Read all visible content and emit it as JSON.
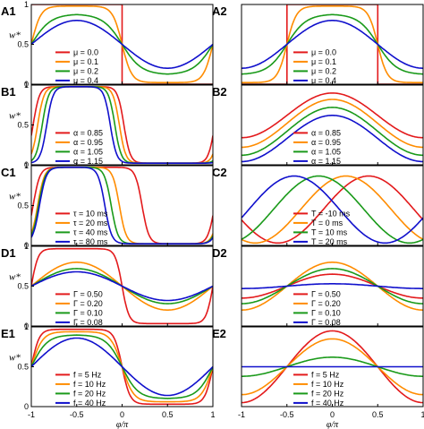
{
  "colors": [
    "#e31a1c",
    "#ff8c00",
    "#1a9a1a",
    "#1010cc"
  ],
  "x_axis_label": "φ/π",
  "y_axis_label": "w*",
  "chart_data": [
    {
      "id": "A1",
      "type": "line",
      "ylabel": "w*",
      "xlim": [
        -1,
        1
      ],
      "ylim": [
        0,
        1
      ],
      "y_ticks": [
        "0",
        "0.5",
        "1"
      ],
      "legend_placement": "bottom-left",
      "series": [
        {
          "name": "μ = 0.0",
          "shape": "rect",
          "params": {
            "lo": -1,
            "hi": 0,
            "y_in": 1,
            "y_out": 0
          }
        },
        {
          "name": "μ = 0.1",
          "shape": "flat-top",
          "params": {
            "center": -0.5,
            "base": 0.02,
            "top": 0.98,
            "k": 0.42
          }
        },
        {
          "name": "μ = 0.2",
          "shape": "flat-top",
          "params": {
            "center": -0.5,
            "base": 0.12,
            "top": 0.88,
            "k": 0.85
          }
        },
        {
          "name": "μ = 0.4",
          "shape": "cosine",
          "params": {
            "center": -0.5,
            "mid": 0.5,
            "amp": 0.3
          }
        }
      ]
    },
    {
      "id": "A2",
      "type": "line",
      "xlim": [
        -1,
        1
      ],
      "ylim": [
        0,
        1
      ],
      "legend_placement": "bottom-right",
      "series": [
        {
          "name": "μ = 0.0",
          "shape": "rect",
          "params": {
            "lo": -0.5,
            "hi": 0.5,
            "y_in": 1,
            "y_out": 0
          }
        },
        {
          "name": "μ = 0.1",
          "shape": "flat-top",
          "params": {
            "center": 0,
            "base": 0.02,
            "top": 0.98,
            "k": 0.42
          }
        },
        {
          "name": "μ = 0.2",
          "shape": "flat-top",
          "params": {
            "center": 0,
            "base": 0.12,
            "top": 0.88,
            "k": 0.85
          }
        },
        {
          "name": "μ = 0.4",
          "shape": "cosine",
          "params": {
            "center": 0,
            "mid": 0.5,
            "amp": 0.3
          }
        }
      ]
    },
    {
      "id": "B1",
      "type": "line",
      "ylabel": "w*",
      "xlim": [
        -1,
        1
      ],
      "ylim": [
        0,
        1
      ],
      "y_ticks": [
        "0",
        "0.5",
        "1"
      ],
      "legend_placement": "bottom-left",
      "series": [
        {
          "name": "α = 0.85",
          "shape": "flat-top",
          "params": {
            "center": -0.48,
            "base": 0.02,
            "top": 0.98,
            "k": 0.28,
            "halfwidth": 0.5
          }
        },
        {
          "name": "α = 0.95",
          "shape": "flat-top",
          "params": {
            "center": -0.48,
            "base": 0.02,
            "top": 0.98,
            "k": 0.28,
            "halfwidth": 0.45
          }
        },
        {
          "name": "α = 1.05",
          "shape": "flat-top",
          "params": {
            "center": -0.48,
            "base": 0.02,
            "top": 0.98,
            "k": 0.28,
            "halfwidth": 0.4
          }
        },
        {
          "name": "α = 1.15",
          "shape": "flat-top",
          "params": {
            "center": -0.48,
            "base": 0.02,
            "top": 0.98,
            "k": 0.28,
            "halfwidth": 0.35
          }
        }
      ]
    },
    {
      "id": "B2",
      "type": "line",
      "xlim": [
        -1,
        1
      ],
      "ylim": [
        0,
        1
      ],
      "legend_placement": "bottom-right",
      "series": [
        {
          "name": "α = 0.85",
          "shape": "cosine",
          "params": {
            "center": 0,
            "mid": 0.62,
            "amp": 0.28
          }
        },
        {
          "name": "α = 0.95",
          "shape": "cosine",
          "params": {
            "center": 0,
            "mid": 0.52,
            "amp": 0.3
          }
        },
        {
          "name": "α = 1.05",
          "shape": "cosine",
          "params": {
            "center": 0,
            "mid": 0.42,
            "amp": 0.3
          }
        },
        {
          "name": "α = 1.15",
          "shape": "cosine",
          "params": {
            "center": 0,
            "mid": 0.33,
            "amp": 0.29
          }
        }
      ]
    },
    {
      "id": "C1",
      "type": "line",
      "ylabel": "w*",
      "xlim": [
        -1,
        1
      ],
      "ylim": [
        0,
        1
      ],
      "y_ticks": [
        "0",
        "0.5",
        "1"
      ],
      "legend_placement": "bottom-left",
      "series": [
        {
          "name": "τ = 10 ms",
          "shape": "flat-top",
          "params": {
            "center": -0.38,
            "base": 0.02,
            "top": 0.98,
            "k": 0.3,
            "halfwidth": 0.6
          }
        },
        {
          "name": "τ = 20 ms",
          "shape": "flat-top",
          "params": {
            "center": -0.48,
            "base": 0.02,
            "top": 0.98,
            "k": 0.3,
            "halfwidth": 0.45
          }
        },
        {
          "name": "τ = 40 ms",
          "shape": "flat-top",
          "params": {
            "center": -0.52,
            "base": 0.02,
            "top": 0.98,
            "k": 0.3,
            "halfwidth": 0.4
          }
        },
        {
          "name": "τ = 80 ms",
          "shape": "flat-top",
          "params": {
            "center": -0.55,
            "base": 0.02,
            "top": 0.98,
            "k": 0.3,
            "halfwidth": 0.36
          }
        }
      ]
    },
    {
      "id": "C2",
      "type": "line",
      "xlim": [
        -1,
        1
      ],
      "ylim": [
        0,
        1
      ],
      "legend_placement": "bottom-right",
      "series": [
        {
          "name": "T = -10 ms",
          "shape": "cosine",
          "params": {
            "center": 0.4,
            "mid": 0.45,
            "amp": 0.42
          }
        },
        {
          "name": "T = 0 ms",
          "shape": "cosine",
          "params": {
            "center": 0.15,
            "mid": 0.45,
            "amp": 0.42
          }
        },
        {
          "name": "T = 10 ms",
          "shape": "cosine",
          "params": {
            "center": -0.15,
            "mid": 0.45,
            "amp": 0.42
          }
        },
        {
          "name": "T = 20 ms",
          "shape": "cosine",
          "params": {
            "center": -0.42,
            "mid": 0.45,
            "amp": 0.42
          }
        }
      ]
    },
    {
      "id": "D1",
      "type": "line",
      "ylabel": "w*",
      "xlim": [
        -1,
        1
      ],
      "ylim": [
        0,
        1
      ],
      "y_ticks": [
        "0",
        "0.5",
        "1"
      ],
      "legend_placement": "bottom-left",
      "series": [
        {
          "name": "Γ = 0.50",
          "shape": "flat-top",
          "params": {
            "center": -0.5,
            "base": 0.03,
            "top": 0.97,
            "k": 0.3
          }
        },
        {
          "name": "Γ = 0.20",
          "shape": "cosine",
          "params": {
            "center": -0.5,
            "mid": 0.5,
            "amp": 0.3
          }
        },
        {
          "name": "Γ = 0.10",
          "shape": "cosine",
          "params": {
            "center": -0.5,
            "mid": 0.5,
            "amp": 0.22
          }
        },
        {
          "name": "Γ = 0.08",
          "shape": "cosine",
          "params": {
            "center": -0.5,
            "mid": 0.5,
            "amp": 0.18
          }
        }
      ]
    },
    {
      "id": "D2",
      "type": "line",
      "xlim": [
        -1,
        1
      ],
      "ylim": [
        0,
        1
      ],
      "legend_placement": "bottom-right",
      "series": [
        {
          "name": "Γ = 0.50",
          "shape": "cosine",
          "params": {
            "center": 0,
            "mid": 0.5,
            "amp": 0.15
          }
        },
        {
          "name": "Γ = 0.20",
          "shape": "cosine",
          "params": {
            "center": 0,
            "mid": 0.5,
            "amp": 0.3
          }
        },
        {
          "name": "Γ = 0.10",
          "shape": "cosine",
          "params": {
            "center": 0,
            "mid": 0.5,
            "amp": 0.22
          }
        },
        {
          "name": "Γ = 0.08",
          "shape": "cosine",
          "params": {
            "center": 0,
            "mid": 0.5,
            "amp": 0.03
          }
        }
      ]
    },
    {
      "id": "E1",
      "type": "line",
      "ylabel": "w*",
      "xlim": [
        -1,
        1
      ],
      "ylim": [
        0,
        1
      ],
      "y_ticks": [
        "0",
        "0.5",
        "1"
      ],
      "legend_placement": "bottom-left",
      "series": [
        {
          "name": "f = 5 Hz",
          "shape": "flat-top",
          "params": {
            "center": -0.5,
            "base": 0.03,
            "top": 0.97,
            "k": 0.35
          }
        },
        {
          "name": "f = 10 Hz",
          "shape": "flat-top",
          "params": {
            "center": -0.5,
            "base": 0.06,
            "top": 0.94,
            "k": 0.5
          }
        },
        {
          "name": "f = 20 Hz",
          "shape": "flat-top",
          "params": {
            "center": -0.5,
            "base": 0.1,
            "top": 0.9,
            "k": 0.7
          }
        },
        {
          "name": "f = 40 Hz",
          "shape": "cosine",
          "params": {
            "center": -0.5,
            "mid": 0.5,
            "amp": 0.36
          }
        }
      ]
    },
    {
      "id": "E2",
      "type": "line",
      "xlim": [
        -1,
        1
      ],
      "ylim": [
        0,
        1
      ],
      "x_ticks": [
        "-1",
        "-0.5",
        "0",
        "0.5",
        "1"
      ],
      "legend_placement": "bottom-right",
      "series": [
        {
          "name": "f = 5 Hz",
          "shape": "cosine",
          "params": {
            "center": 0,
            "mid": 0.5,
            "amp": 0.45
          }
        },
        {
          "name": "f = 10 Hz",
          "shape": "cosine",
          "params": {
            "center": 0,
            "mid": 0.5,
            "amp": 0.35
          }
        },
        {
          "name": "f = 20 Hz",
          "shape": "cosine",
          "params": {
            "center": 0,
            "mid": 0.5,
            "amp": 0.12
          }
        },
        {
          "name": "f = 40 Hz",
          "shape": "cosine",
          "params": {
            "center": 0,
            "mid": 0.5,
            "amp": 0.0
          }
        }
      ]
    }
  ]
}
